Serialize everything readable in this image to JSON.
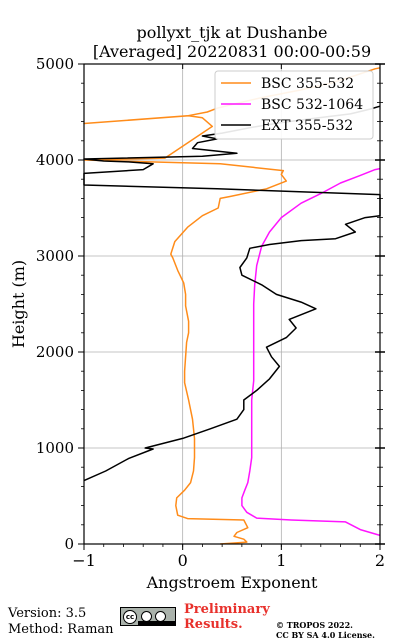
{
  "chart_data": {
    "type": "line",
    "title": "pollyxt_tjk at Dushanbe",
    "subtitle": "[Averaged] 20220831 00:00-00:59",
    "xlabel": "Angstroem Exponent",
    "ylabel": "Height (m)",
    "xlim": [
      -1,
      2
    ],
    "ylim": [
      0,
      5000
    ],
    "xticks": [
      -1,
      0,
      1,
      2
    ],
    "yticks": [
      0,
      1000,
      2000,
      3000,
      4000,
      5000
    ],
    "grid": true,
    "legend_position": "top-right",
    "series": [
      {
        "name": "BSC 355-532",
        "color": "#ff8c1a",
        "points": [
          [
            0.38,
            0
          ],
          [
            0.65,
            20
          ],
          [
            0.62,
            50
          ],
          [
            0.52,
            80
          ],
          [
            0.55,
            120
          ],
          [
            0.66,
            170
          ],
          [
            0.62,
            250
          ],
          [
            0.05,
            265
          ],
          [
            -0.05,
            300
          ],
          [
            -0.07,
            400
          ],
          [
            -0.06,
            480
          ],
          [
            0.02,
            560
          ],
          [
            0.08,
            640
          ],
          [
            0.11,
            760
          ],
          [
            0.12,
            900
          ],
          [
            0.12,
            1100
          ],
          [
            0.1,
            1300
          ],
          [
            0.06,
            1500
          ],
          [
            0.02,
            1680
          ],
          [
            0.02,
            1800
          ],
          [
            0.03,
            1950
          ],
          [
            0.04,
            2100
          ],
          [
            0.06,
            2200
          ],
          [
            0.06,
            2320
          ],
          [
            0.03,
            2480
          ],
          [
            0.03,
            2600
          ],
          [
            0.01,
            2720
          ],
          [
            -0.05,
            2850
          ],
          [
            -0.1,
            2980
          ],
          [
            -0.12,
            3020
          ],
          [
            -0.08,
            3150
          ],
          [
            0.05,
            3300
          ],
          [
            0.2,
            3420
          ],
          [
            0.36,
            3500
          ],
          [
            0.38,
            3600
          ],
          [
            0.48,
            3620
          ],
          [
            0.85,
            3700
          ],
          [
            1.05,
            3780
          ],
          [
            1.0,
            3850
          ],
          [
            1.02,
            3890
          ],
          [
            0.38,
            3960
          ],
          [
            -1.0,
            4000
          ],
          [
            -0.18,
            4020
          ],
          [
            0.3,
            4350
          ],
          [
            0.2,
            4440
          ],
          [
            0.06,
            4460
          ],
          [
            -1.0,
            4380
          ],
          [
            0.05,
            4460
          ],
          [
            0.25,
            4500
          ],
          [
            0.35,
            4540
          ],
          [
            0.55,
            4590
          ],
          [
            0.8,
            4650
          ],
          [
            1.2,
            4730
          ],
          [
            1.5,
            4800
          ],
          [
            1.75,
            4880
          ],
          [
            1.95,
            4950
          ],
          [
            2.0,
            4960
          ]
        ]
      },
      {
        "name": "BSC 532-1064",
        "color": "#ff14ff",
        "points": [
          [
            2.0,
            90
          ],
          [
            1.8,
            150
          ],
          [
            1.65,
            230
          ],
          [
            1.1,
            250
          ],
          [
            0.75,
            270
          ],
          [
            0.65,
            330
          ],
          [
            0.6,
            400
          ],
          [
            0.6,
            480
          ],
          [
            0.63,
            560
          ],
          [
            0.66,
            640
          ],
          [
            0.68,
            760
          ],
          [
            0.7,
            900
          ],
          [
            0.7,
            1100
          ],
          [
            0.7,
            1300
          ],
          [
            0.7,
            1500
          ],
          [
            0.72,
            1700
          ],
          [
            0.72,
            1900
          ],
          [
            0.72,
            2100
          ],
          [
            0.72,
            2300
          ],
          [
            0.72,
            2500
          ],
          [
            0.73,
            2700
          ],
          [
            0.75,
            2900
          ],
          [
            0.8,
            3100
          ],
          [
            0.88,
            3250
          ],
          [
            1.0,
            3400
          ],
          [
            1.2,
            3550
          ],
          [
            1.4,
            3650
          ],
          [
            1.6,
            3760
          ],
          [
            1.8,
            3840
          ],
          [
            1.95,
            3900
          ],
          [
            2.0,
            3910
          ]
        ]
      },
      {
        "name": "EXT 355-532",
        "color": "#000000",
        "points": [
          [
            -1.0,
            660
          ],
          [
            -0.78,
            760
          ],
          [
            -0.55,
            890
          ],
          [
            -0.3,
            990
          ],
          [
            -0.38,
            1000
          ],
          [
            0.0,
            1100
          ],
          [
            0.28,
            1200
          ],
          [
            0.55,
            1300
          ],
          [
            0.62,
            1400
          ],
          [
            0.62,
            1500
          ],
          [
            0.75,
            1600
          ],
          [
            0.88,
            1720
          ],
          [
            0.98,
            1850
          ],
          [
            0.9,
            1950
          ],
          [
            0.85,
            2050
          ],
          [
            1.05,
            2150
          ],
          [
            1.15,
            2250
          ],
          [
            1.08,
            2340
          ],
          [
            1.35,
            2450
          ],
          [
            1.2,
            2520
          ],
          [
            0.95,
            2600
          ],
          [
            0.8,
            2700
          ],
          [
            0.6,
            2800
          ],
          [
            0.58,
            2880
          ],
          [
            0.65,
            2980
          ],
          [
            0.68,
            3080
          ],
          [
            0.88,
            3120
          ],
          [
            1.2,
            3160
          ],
          [
            1.55,
            3180
          ],
          [
            1.75,
            3250
          ],
          [
            1.65,
            3330
          ],
          [
            1.85,
            3400
          ],
          [
            2.0,
            3420
          ],
          [
            2.0,
            3640
          ],
          [
            0.35,
            3700
          ],
          [
            -1.0,
            3740
          ],
          [
            -1.0,
            3860
          ],
          [
            -0.4,
            3900
          ],
          [
            -0.3,
            3960
          ],
          [
            -0.55,
            3980
          ],
          [
            -0.8,
            3990
          ],
          [
            -1.0,
            4010
          ],
          [
            0.2,
            4040
          ],
          [
            0.55,
            4070
          ],
          [
            0.1,
            4120
          ],
          [
            0.15,
            4180
          ],
          [
            0.35,
            4220
          ],
          [
            0.2,
            4250
          ],
          [
            0.4,
            4280
          ],
          [
            0.7,
            4340
          ],
          [
            1.0,
            4390
          ],
          [
            1.3,
            4430
          ],
          [
            1.7,
            4480
          ],
          [
            1.9,
            4530
          ],
          [
            2.0,
            4560
          ]
        ]
      }
    ]
  },
  "footer": {
    "version": "Version: 3.5",
    "method": "Method: Raman",
    "preliminary_line1": "Preliminary",
    "preliminary_line2": "Results.",
    "copyright_line1": "© TROPOS 2022.",
    "copyright_line2": "CC BY SA 4.0 License.",
    "license_badge": "cc by sa"
  }
}
